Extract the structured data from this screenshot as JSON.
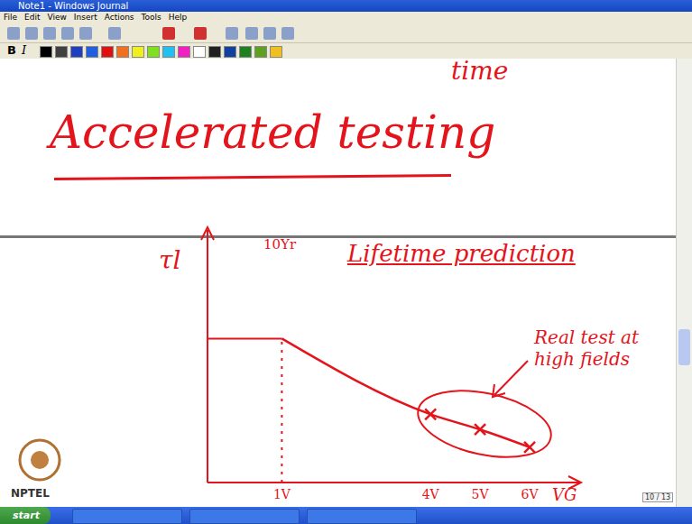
{
  "window": {
    "title": "Note1 - Windows Journal",
    "menu": [
      "File",
      "Edit",
      "View",
      "Insert",
      "Actions",
      "Tools",
      "Help"
    ],
    "format_buttons": [
      "B",
      "I"
    ],
    "page_indicator": "10 / 13",
    "start_button": "start"
  },
  "page": {
    "corner_text": "time",
    "heading": "Accelerated testing",
    "logo": "NPTEL"
  },
  "chart_data": {
    "type": "line",
    "title": "Lifetime prediction",
    "y_label": "τl",
    "x_label": "VG",
    "xlim": [
      -0.5,
      7
    ],
    "xticks": [
      {
        "value": 1,
        "label": "1V"
      },
      {
        "value": 4,
        "label": "4V"
      },
      {
        "value": 5,
        "label": "5V"
      },
      {
        "value": 6,
        "label": "6V"
      }
    ],
    "ylim": [
      0,
      10
    ],
    "yticks": [],
    "tick_labels": "x",
    "color": "#e3141b",
    "series": [
      {
        "type": "line",
        "x": [
          1,
          4,
          5,
          6
        ],
        "values": [
          5.7,
          2.7,
          2.1,
          1.4
        ]
      },
      {
        "type": "scatter",
        "marker": "x",
        "x": [
          4,
          5,
          6
        ],
        "values": [
          2.7,
          2.1,
          1.4
        ]
      }
    ],
    "annotations": [
      "10Yr",
      "Real test at high fields"
    ]
  }
}
